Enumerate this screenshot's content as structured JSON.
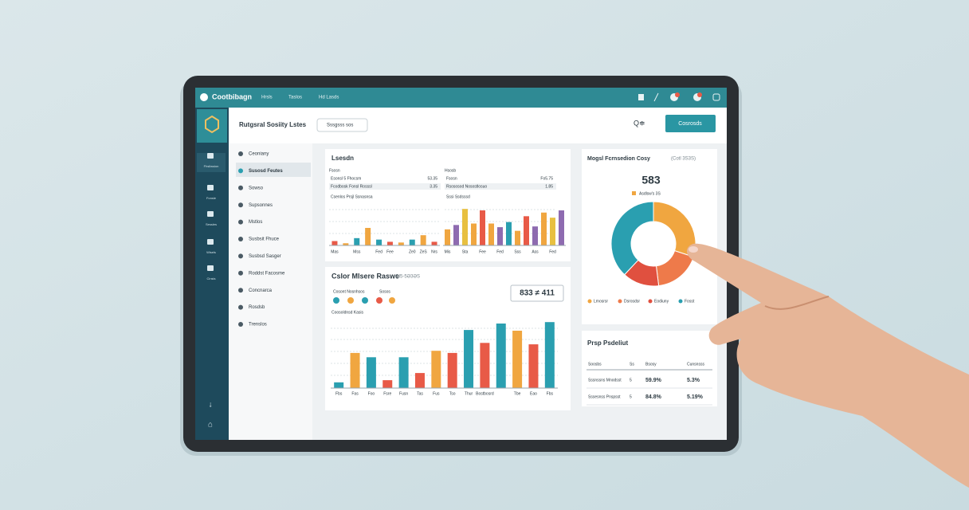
{
  "top_bar": {
    "brand": "Cootbibagn",
    "nav": [
      "Hrsls",
      "Taslos",
      "Hd Lasds"
    ]
  },
  "sidebar": {
    "items": [
      "Fhsllwsion",
      "Fonsle",
      "Sessles",
      "Wisels",
      "Cinsis"
    ]
  },
  "menu": {
    "items": [
      "Ceoniany",
      "Susosd Feutes",
      "Sowso",
      "Supsonnes",
      "Mstlos",
      "Susbsit Fhuce",
      "Susbsd Sasger",
      "Roddst Facosme",
      "Concnarca",
      "Rosdsb",
      "Trenslos"
    ],
    "selected": 1
  },
  "header": {
    "title": "Rutgsral Sosiity Lstes",
    "dropdown": "Sssgsss sos",
    "search": "Q≑",
    "button": "Cosrosds"
  },
  "cards": [
    {
      "title": "Lsesdn",
      "tables": [
        {
          "heading": "Fsosn",
          "rows": [
            [
              "Esonsl 5 Fhocsm",
              "53.35"
            ],
            [
              "Fcodbosk Fonsl Rosssl",
              "3.35"
            ]
          ],
          "caption": "Csenlos Prsjl Ssnasnsa"
        },
        {
          "heading": "Hsosb",
          "rows": [
            [
              "Fsosn",
              "Fo5.75"
            ],
            [
              "Rsososod Nosostlosuo",
              "1.85"
            ]
          ],
          "caption": "Sssi Ssdsssd"
        }
      ]
    },
    {
      "title": "Cslor Mlsere Raswe",
      "subtitle": "Ol5-5Ə3ƏS",
      "legend": [
        "Cosont Nosnhsos",
        "Sosos"
      ],
      "caption": "Coosoldnsd Kasis",
      "value": "833 ≠ 411"
    },
    {
      "title": "Mogsl Fcrnsedion Cosy",
      "subtitle": "(Cotl 3S3S)",
      "value": "583",
      "note": "Asdlsw's 3S"
    },
    {
      "title": "Prsp Psdeliut",
      "table": {
        "header": [
          "Soosbs",
          "Ss",
          "Bsosy",
          "Cunsnsss"
        ],
        "rows": [
          [
            "Sssnssns Mnodsst",
            "5",
            "59.9%",
            "5.3%"
          ],
          [
            "Sssesnss Pnspsst",
            "5",
            "84.8%",
            "5.19%"
          ]
        ]
      }
    }
  ],
  "chart_data": [
    {
      "type": "bar",
      "categories": [
        "Mas",
        null,
        "Mss",
        null,
        "Fed",
        "Fee",
        null,
        "Ze0",
        "ZeS",
        "Nrs"
      ],
      "values": [
        6,
        3,
        10,
        24,
        8,
        5,
        4,
        8,
        14,
        5
      ],
      "colors": [
        "#e85a47",
        "#f0a640",
        "#2a9fb0",
        "#f0a640",
        "#2a9fb0",
        "#e85a47",
        "#f0a640",
        "#2a9fb0",
        "#f0a640",
        "#e85a47"
      ],
      "ylim": [
        0,
        60
      ]
    },
    {
      "type": "bar",
      "categories": [
        "Mis",
        null,
        "Sta",
        null,
        "Fee",
        null,
        "Fed",
        null,
        "Sss",
        null,
        "Ass",
        null,
        "Fed",
        null
      ],
      "values": [
        22,
        28,
        50,
        30,
        48,
        30,
        25,
        32,
        20,
        40,
        26,
        45,
        38,
        48
      ],
      "colors": [
        "#f0a640",
        "#8e6bb0",
        "#e8c040",
        "#f0a640",
        "#e85a47",
        "#f0a640",
        "#8e6bb0",
        "#2a9fb0",
        "#f0a640",
        "#e85a47",
        "#8e6bb0",
        "#f0a640",
        "#e8c040",
        "#8e6bb0"
      ],
      "ylim": [
        0,
        60
      ]
    },
    {
      "type": "bar",
      "categories": [
        "Fbs",
        "Fas",
        "Foo",
        "Fsre",
        "Fusn",
        "Tas",
        "Fus",
        "Tso",
        "Thur",
        "Bostbosrd",
        null,
        "Tbe",
        "Eao",
        "Fbs"
      ],
      "values": [
        8,
        49,
        43,
        11,
        43,
        21,
        52,
        49,
        81,
        63,
        90,
        80,
        61,
        92
      ],
      "colors": [
        "#2a9fb0",
        "#f0a640",
        "#2a9fb0",
        "#e85a47",
        "#2a9fb0",
        "#e85a47",
        "#f0a640",
        "#e85a47",
        "#2a9fb0",
        "#e85a47",
        "#2a9fb0",
        "#f0a640",
        "#e85a47",
        "#2a9fb0"
      ],
      "ylim": [
        0,
        100
      ]
    },
    {
      "type": "pie",
      "categories": [
        "Lmosrsr",
        "Dsrosdsr",
        "Eodiuny",
        "Fosst"
      ],
      "values": [
        30,
        18,
        14,
        38
      ],
      "colors": [
        "#f0a640",
        "#ee7a4a",
        "#e0503f",
        "#2a9fb0"
      ]
    }
  ]
}
